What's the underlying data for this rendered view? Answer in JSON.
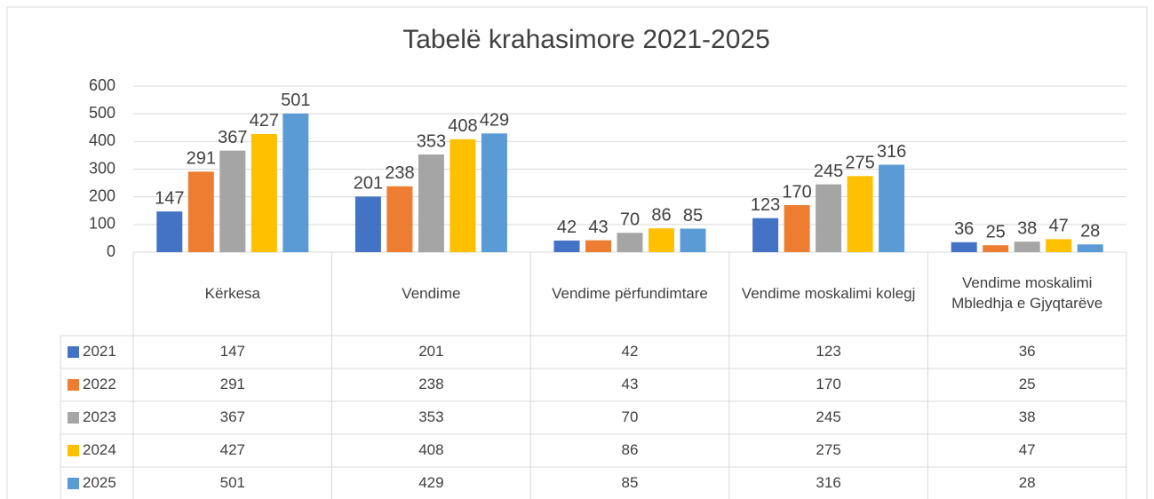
{
  "chart_data": {
    "type": "bar",
    "title": "Tabelë krahasimore 2021-2025",
    "categories": [
      "Kërkesa",
      "Vendime",
      "Vendime përfundimtare",
      "Vendime moskalimi kolegj",
      "Vendime moskalimi Mbledhja e Gjyqtarëve"
    ],
    "series": [
      {
        "name": "2021",
        "color": "#4472c4",
        "values": [
          147,
          201,
          42,
          123,
          36
        ]
      },
      {
        "name": "2022",
        "color": "#ed7d31",
        "values": [
          291,
          238,
          43,
          170,
          25
        ]
      },
      {
        "name": "2023",
        "color": "#a5a5a5",
        "values": [
          367,
          353,
          70,
          245,
          38
        ]
      },
      {
        "name": "2024",
        "color": "#ffc000",
        "values": [
          427,
          408,
          86,
          275,
          47
        ]
      },
      {
        "name": "2025",
        "color": "#5b9bd5",
        "values": [
          501,
          429,
          85,
          316,
          28
        ]
      }
    ],
    "ylim": [
      0,
      600
    ],
    "yticks": [
      0,
      100,
      200,
      300,
      400,
      500,
      600
    ],
    "grid": true
  }
}
